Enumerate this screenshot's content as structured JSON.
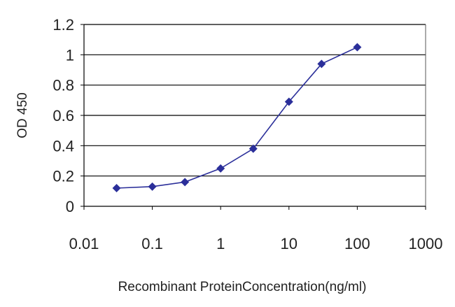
{
  "chart_data": {
    "type": "line",
    "title": "",
    "xlabel": "Recombinant ProteinConcentration(ng/ml)",
    "ylabel": "OD 450",
    "x_scale": "log",
    "xlim": [
      0.01,
      1000
    ],
    "ylim": [
      0,
      1.2
    ],
    "x_ticks": [
      0.01,
      0.1,
      1,
      10,
      100,
      1000
    ],
    "x_tick_labels": [
      "0.01",
      "0.1",
      "1",
      "10",
      "100",
      "1000"
    ],
    "y_ticks": [
      0,
      0.2,
      0.4,
      0.6,
      0.8,
      1,
      1.2
    ],
    "y_tick_labels": [
      "0",
      "0.2",
      "0.4",
      "0.6",
      "0.8",
      "1",
      "1.2"
    ],
    "grid": "horizontal",
    "legend": "none",
    "series": [
      {
        "x": [
          0.03,
          0.1,
          0.3,
          1,
          3,
          10,
          30,
          100
        ],
        "y": [
          0.12,
          0.13,
          0.16,
          0.25,
          0.38,
          0.69,
          0.94,
          1.05
        ],
        "color": "#2b2f9a",
        "marker": "diamond"
      }
    ],
    "colors": {
      "axis": "#000000",
      "grid": "#000000",
      "series": "#2b2f9a",
      "text": "#222222"
    }
  }
}
